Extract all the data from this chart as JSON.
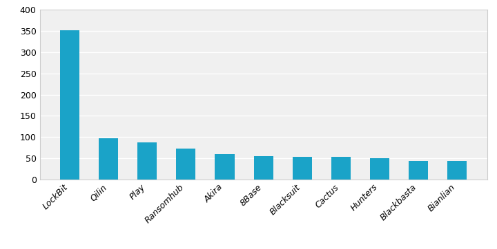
{
  "categories": [
    "LockBit",
    "Qilin",
    "Play",
    "Ransomhub",
    "Akira",
    "8Base",
    "Blacksuit",
    "Cactus",
    "Hunters",
    "Blackbasta",
    "Bianlian"
  ],
  "values": [
    352,
    97,
    87,
    73,
    59,
    55,
    53,
    53,
    50,
    43,
    43
  ],
  "bar_color": "#1aa3c8",
  "ylim": [
    0,
    400
  ],
  "yticks": [
    0,
    50,
    100,
    150,
    200,
    250,
    300,
    350,
    400
  ],
  "background_color": "#ffffff",
  "plot_area_color": "#f0f0f0",
  "grid_color": "#ffffff",
  "tick_label_fontsize": 9,
  "bar_width": 0.5,
  "spine_color": "#cccccc"
}
